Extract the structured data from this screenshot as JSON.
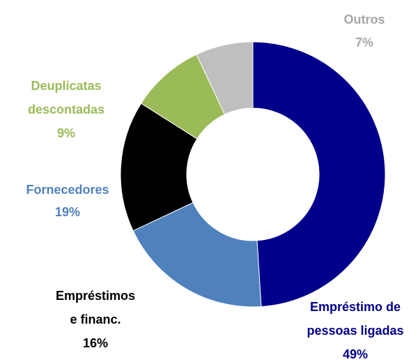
{
  "chart_data": {
    "type": "donut",
    "categories": [
      [
        "Empréstimo de",
        "pessoas ligadas"
      ],
      [
        "Fornecedores"
      ],
      [
        "Empréstimos",
        "e financ."
      ],
      [
        "Deuplicatas",
        "descontadas"
      ],
      [
        "Outros"
      ]
    ],
    "values": [
      49,
      19,
      16,
      9,
      7
    ],
    "value_labels": [
      "49%",
      "19%",
      "16%",
      "9%",
      "7%"
    ],
    "colors": [
      "#00008b",
      "#4f81bd",
      "#000000",
      "#9bbb59",
      "#bfbfbf"
    ],
    "label_colors": [
      "#00008b",
      "#4f81bd",
      "#000000",
      "#9bbb59",
      "#a6a6a6"
    ]
  }
}
